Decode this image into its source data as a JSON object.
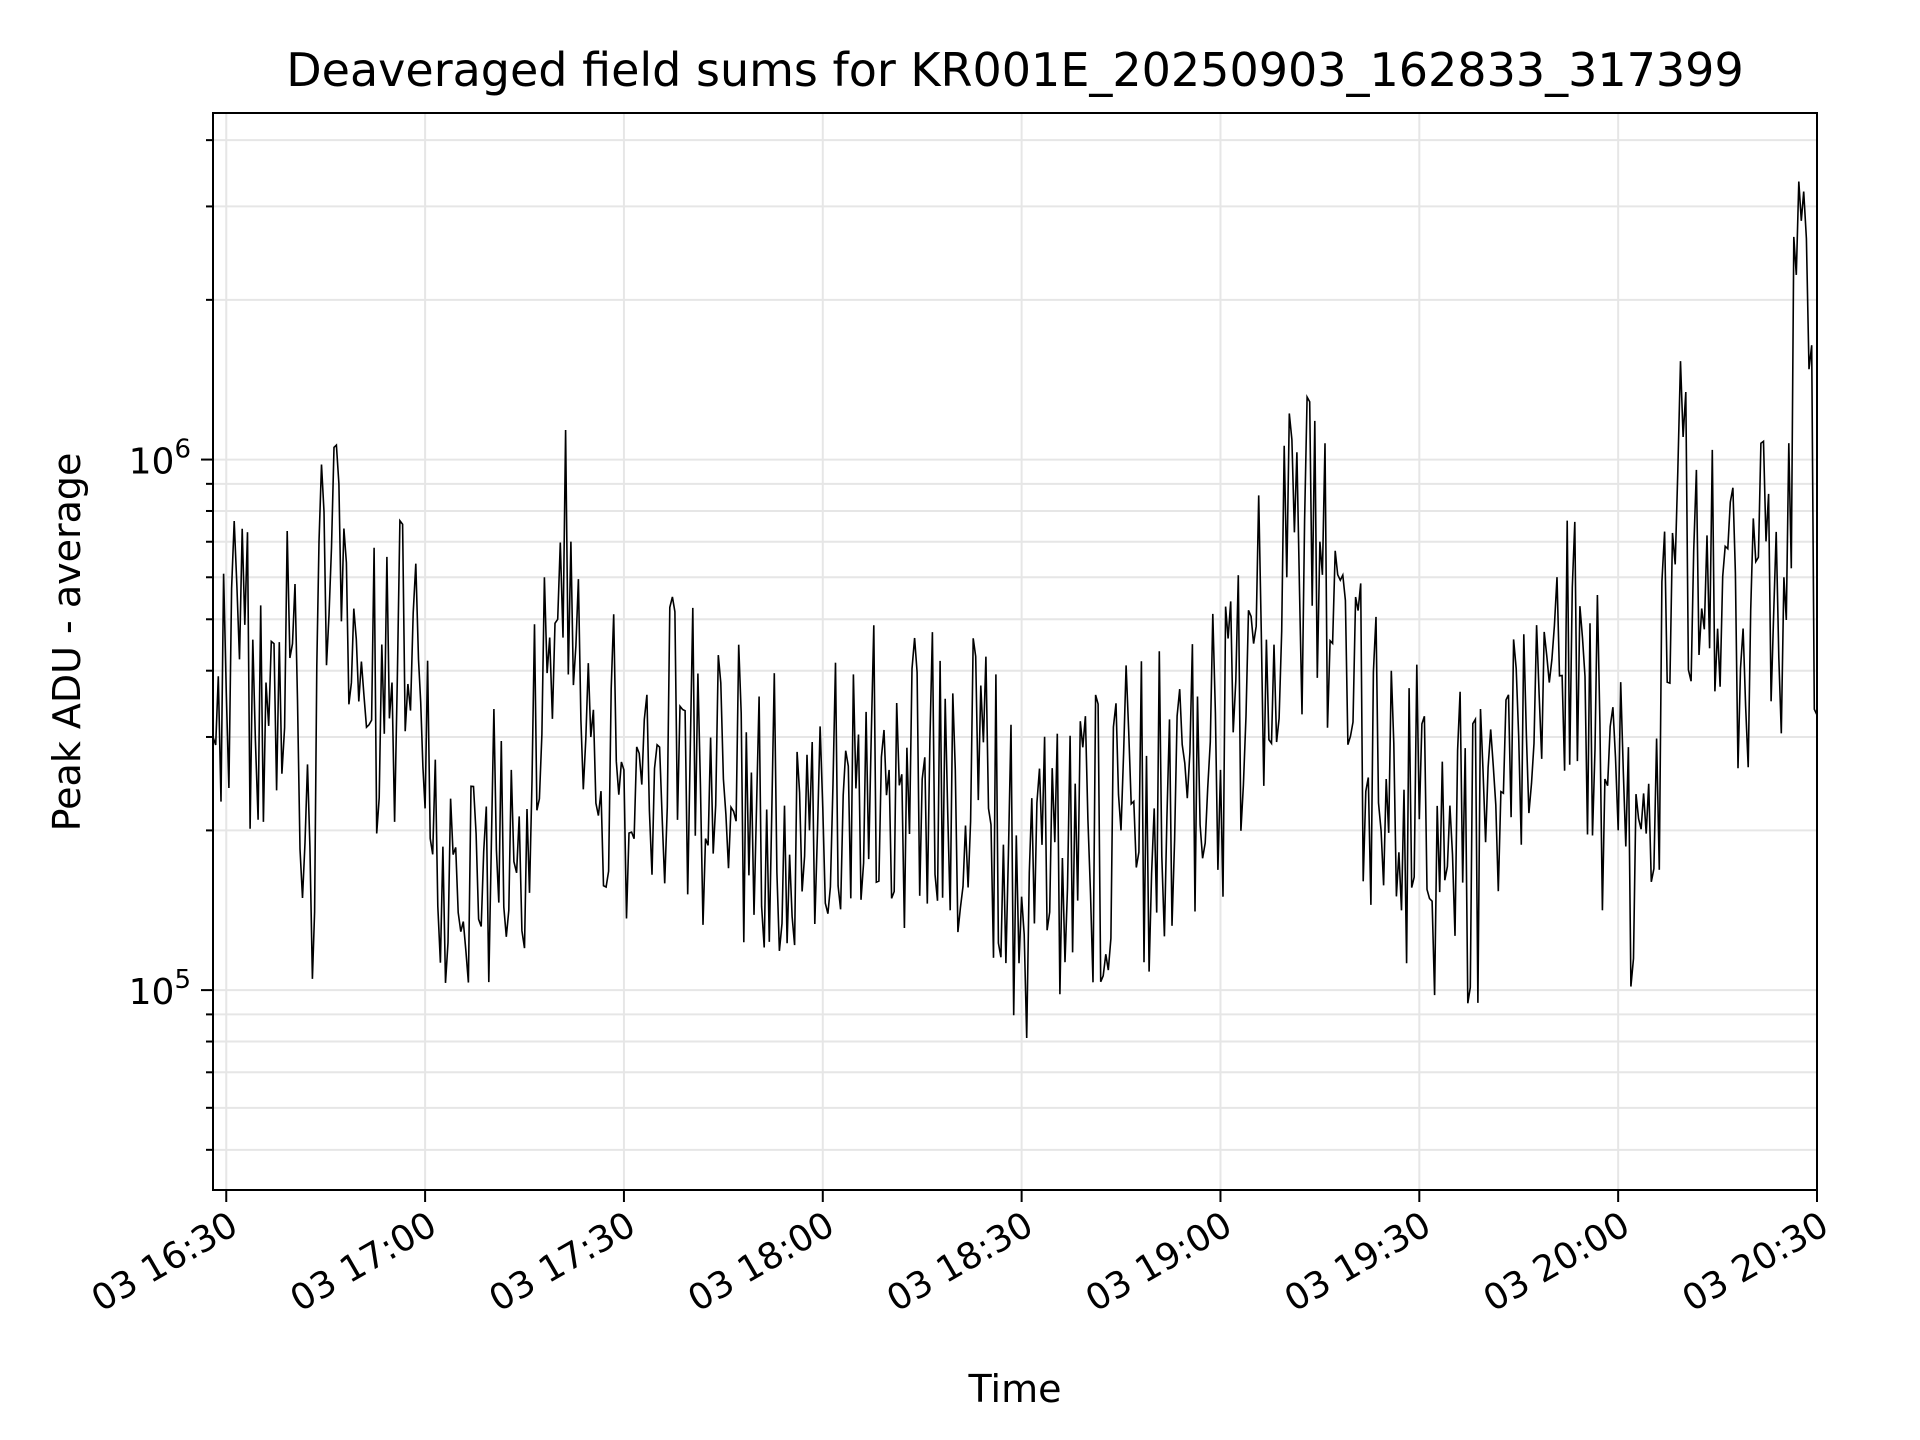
{
  "chart_data": {
    "type": "line",
    "title": "Deaveraged field sums for KR001E_20250903_162833_317399",
    "xlabel": "Time",
    "ylabel": "Peak ADU - average",
    "yscale": "log",
    "xlim": [
      "2025-09-03 16:28",
      "2025-09-03 20:30"
    ],
    "ylim": [
      42000,
      4500000
    ],
    "grid": true,
    "line_color": "#000000",
    "x_ticks": [
      {
        "value": "2025-09-03 16:30",
        "label": "03 16:30"
      },
      {
        "value": "2025-09-03 17:00",
        "label": "03 17:00"
      },
      {
        "value": "2025-09-03 17:30",
        "label": "03 17:30"
      },
      {
        "value": "2025-09-03 18:00",
        "label": "03 18:00"
      },
      {
        "value": "2025-09-03 18:30",
        "label": "03 18:30"
      },
      {
        "value": "2025-09-03 19:00",
        "label": "03 19:00"
      },
      {
        "value": "2025-09-03 19:30",
        "label": "03 19:30"
      },
      {
        "value": "2025-09-03 20:00",
        "label": "03 20:00"
      },
      {
        "value": "2025-09-03 20:30",
        "label": "03 20:30"
      }
    ],
    "y_ticks": [
      {
        "value": 100000,
        "base": "10",
        "exp": "5"
      },
      {
        "value": 1000000,
        "base": "10",
        "exp": "6"
      }
    ],
    "series": [
      {
        "x": [
          "2025-09-03 16:28",
          "2025-09-03 16:32",
          "2025-09-03 16:36",
          "2025-09-03 16:40",
          "2025-09-03 16:43",
          "2025-09-03 16:44",
          "2025-09-03 16:47",
          "2025-09-03 16:50",
          "2025-09-03 16:55",
          "2025-09-03 16:59",
          "2025-09-03 17:00",
          "2025-09-03 17:05",
          "2025-09-03 17:10",
          "2025-09-03 17:13",
          "2025-09-03 17:15",
          "2025-09-03 17:18",
          "2025-09-03 17:20",
          "2025-09-03 17:22",
          "2025-09-03 17:25",
          "2025-09-03 17:30",
          "2025-09-03 17:35",
          "2025-09-03 17:40",
          "2025-09-03 17:45",
          "2025-09-03 17:50",
          "2025-09-03 17:55",
          "2025-09-03 17:58",
          "2025-09-03 18:00",
          "2025-09-03 18:05",
          "2025-09-03 18:10",
          "2025-09-03 18:15",
          "2025-09-03 18:20",
          "2025-09-03 18:25",
          "2025-09-03 18:28",
          "2025-09-03 18:30",
          "2025-09-03 18:35",
          "2025-09-03 18:40",
          "2025-09-03 18:45",
          "2025-09-03 18:50",
          "2025-09-03 18:55",
          "2025-09-03 19:00",
          "2025-09-03 19:05",
          "2025-09-03 19:10",
          "2025-09-03 19:15",
          "2025-09-03 19:20",
          "2025-09-03 19:25",
          "2025-09-03 19:30",
          "2025-09-03 19:35",
          "2025-09-03 19:40",
          "2025-09-03 19:45",
          "2025-09-03 19:50",
          "2025-09-03 19:55",
          "2025-09-03 19:58",
          "2025-09-03 20:00",
          "2025-09-03 20:05",
          "2025-09-03 20:09",
          "2025-09-03 20:15",
          "2025-09-03 20:20",
          "2025-09-03 20:25",
          "2025-09-03 20:28",
          "2025-09-03 20:30"
        ],
        "y": [
          300000,
          420000,
          380000,
          450000,
          105000,
          700000,
          900000,
          350000,
          380000,
          420000,
          220000,
          140000,
          190000,
          260000,
          120000,
          600000,
          500000,
          700000,
          300000,
          260000,
          290000,
          280000,
          250000,
          220000,
          180000,
          200000,
          220000,
          240000,
          260000,
          250000,
          260000,
          220000,
          180000,
          150000,
          190000,
          210000,
          200000,
          220000,
          230000,
          260000,
          450000,
          600000,
          700000,
          320000,
          250000,
          210000,
          180000,
          190000,
          300000,
          420000,
          390000,
          250000,
          200000,
          160000,
          950000,
          480000,
          520000,
          600000,
          3200000,
          330000
        ]
      }
    ]
  }
}
